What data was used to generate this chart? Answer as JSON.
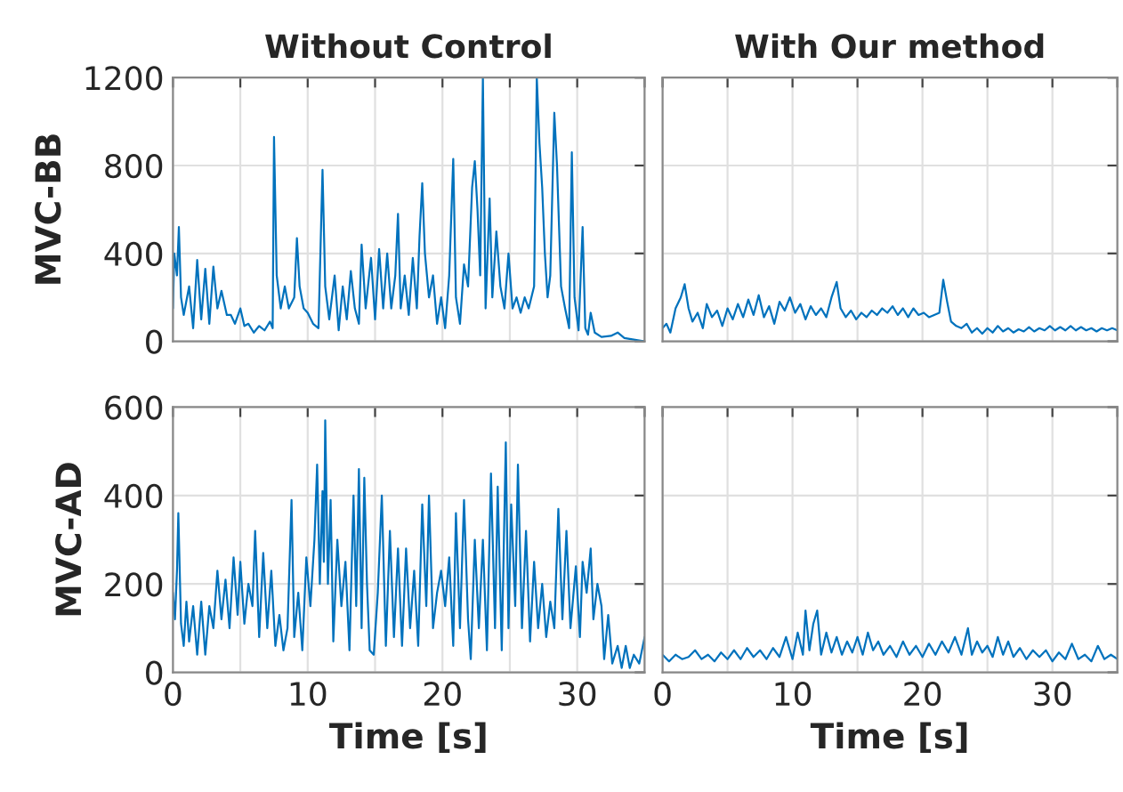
{
  "chart_data": [
    {
      "type": "line",
      "title": "Without Control",
      "ylabel": "MVC-BB",
      "tick_labels": "y",
      "grid": true,
      "xlim": [
        0,
        35
      ],
      "xticks": [
        0,
        {
          "value": 5,
          "label": null
        },
        {
          "value": 10,
          "label": null
        },
        {
          "value": 15,
          "label": null
        },
        {
          "value": 20,
          "label": null
        },
        {
          "value": 25,
          "label": null
        },
        {
          "value": 30,
          "label": null
        },
        {
          "value": 35,
          "label": null
        }
      ],
      "ylim": [
        0,
        1200
      ],
      "yticks": [
        0,
        400,
        800,
        1200
      ],
      "x": [
        0,
        0.1,
        0.3,
        0.44,
        0.6,
        0.8,
        1.2,
        1.5,
        1.8,
        2.1,
        2.4,
        2.7,
        3.0,
        3.3,
        3.6,
        4.0,
        4.3,
        4.6,
        5.0,
        5.3,
        5.6,
        6.0,
        6.4,
        6.8,
        7.2,
        7.4,
        7.5,
        7.7,
        8.0,
        8.3,
        8.6,
        9.0,
        9.2,
        9.4,
        9.7,
        10.0,
        10.4,
        10.8,
        11.1,
        11.3,
        11.6,
        12.0,
        12.3,
        12.6,
        12.9,
        13.2,
        13.5,
        13.8,
        14.0,
        14.3,
        14.7,
        15.0,
        15.3,
        15.6,
        15.9,
        16.2,
        16.5,
        16.7,
        16.9,
        17.2,
        17.5,
        17.8,
        18.1,
        18.3,
        18.5,
        18.7,
        19.0,
        19.3,
        19.6,
        19.9,
        20.2,
        20.5,
        20.8,
        21.0,
        21.3,
        21.6,
        21.9,
        22.2,
        22.4,
        22.6,
        22.8,
        23.0,
        23.2,
        23.5,
        23.7,
        24.0,
        24.3,
        24.6,
        24.9,
        25.2,
        25.5,
        25.8,
        26.1,
        26.4,
        26.8,
        27.0,
        27.2,
        27.4,
        27.6,
        27.8,
        28.0,
        28.3,
        28.5,
        28.8,
        29.1,
        29.4,
        29.6,
        29.8,
        30.1,
        30.4,
        30.6,
        30.8,
        31.0,
        31.3,
        31.8,
        32.5,
        33.0,
        33.5,
        34.0,
        34.5,
        35.0
      ],
      "series": [
        {
          "color": "#0072bd",
          "values": [
            150,
            400,
            300,
            520,
            200,
            120,
            250,
            60,
            370,
            100,
            330,
            80,
            340,
            150,
            230,
            120,
            120,
            80,
            150,
            70,
            80,
            40,
            70,
            50,
            90,
            60,
            930,
            300,
            150,
            250,
            150,
            200,
            470,
            250,
            150,
            130,
            80,
            60,
            780,
            250,
            100,
            300,
            50,
            250,
            100,
            320,
            150,
            80,
            440,
            150,
            380,
            100,
            420,
            150,
            400,
            150,
            300,
            580,
            150,
            300,
            120,
            380,
            150,
            480,
            720,
            400,
            200,
            300,
            80,
            200,
            60,
            300,
            830,
            200,
            80,
            350,
            250,
            700,
            820,
            600,
            300,
            1200,
            150,
            650,
            200,
            500,
            250,
            150,
            400,
            150,
            200,
            130,
            200,
            150,
            250,
            1200,
            900,
            700,
            400,
            200,
            300,
            1040,
            800,
            250,
            150,
            60,
            860,
            200,
            50,
            520,
            60,
            30,
            130,
            40,
            20,
            25,
            40,
            15,
            10,
            5,
            0
          ]
        }
      ]
    },
    {
      "type": "line",
      "title": "With Our method",
      "tick_labels": false,
      "grid": true,
      "xlim": [
        0,
        35
      ],
      "xticks": [
        0,
        {
          "value": 5,
          "label": null
        },
        {
          "value": 10,
          "label": null
        },
        {
          "value": 15,
          "label": null
        },
        {
          "value": 20,
          "label": null
        },
        {
          "value": 25,
          "label": null
        },
        {
          "value": 30,
          "label": null
        },
        {
          "value": 35,
          "label": null
        }
      ],
      "ylim": [
        0,
        1200
      ],
      "yticks": [
        0,
        400,
        800,
        1200
      ],
      "x": [
        0,
        0.3,
        0.6,
        1.0,
        1.4,
        1.7,
        2.0,
        2.3,
        2.7,
        3.1,
        3.4,
        3.8,
        4.2,
        4.6,
        5.0,
        5.4,
        5.8,
        6.2,
        6.6,
        7.0,
        7.4,
        7.8,
        8.2,
        8.6,
        9.0,
        9.4,
        9.8,
        10.2,
        10.6,
        11.0,
        11.4,
        11.8,
        12.2,
        12.6,
        13.0,
        13.4,
        13.7,
        14.1,
        14.5,
        14.9,
        15.3,
        15.7,
        16.1,
        16.5,
        16.9,
        17.3,
        17.7,
        18.1,
        18.5,
        18.9,
        19.3,
        19.7,
        20.1,
        20.5,
        20.9,
        21.3,
        21.6,
        21.9,
        22.2,
        22.6,
        23.0,
        23.4,
        23.8,
        24.2,
        24.6,
        25.0,
        25.4,
        25.8,
        26.2,
        26.6,
        27.0,
        27.4,
        27.8,
        28.2,
        28.6,
        29.0,
        29.4,
        29.8,
        30.2,
        30.6,
        31.0,
        31.4,
        31.8,
        32.2,
        32.6,
        33.0,
        33.4,
        33.8,
        34.2,
        34.6,
        35.0
      ],
      "series": [
        {
          "color": "#0072bd",
          "values": [
            60,
            80,
            40,
            150,
            200,
            260,
            150,
            90,
            130,
            60,
            170,
            110,
            140,
            70,
            150,
            100,
            170,
            110,
            190,
            120,
            210,
            110,
            160,
            80,
            180,
            140,
            200,
            130,
            170,
            100,
            160,
            120,
            150,
            110,
            200,
            270,
            150,
            110,
            140,
            100,
            130,
            110,
            140,
            120,
            150,
            130,
            160,
            120,
            150,
            110,
            150,
            120,
            130,
            110,
            120,
            130,
            280,
            180,
            90,
            70,
            60,
            80,
            40,
            60,
            35,
            60,
            40,
            70,
            45,
            60,
            40,
            55,
            45,
            65,
            45,
            60,
            50,
            70,
            50,
            65,
            50,
            70,
            50,
            65,
            50,
            60,
            45,
            60,
            50,
            60,
            50
          ]
        }
      ]
    },
    {
      "type": "line",
      "ylabel": "MVC-AD",
      "xlabel": "Time [s]",
      "grid": true,
      "xlim": [
        0,
        35
      ],
      "xticks": [
        0,
        {
          "value": 5,
          "label": null
        },
        10,
        {
          "value": 15,
          "label": null
        },
        20,
        {
          "value": 25,
          "label": null
        },
        30,
        {
          "value": 35,
          "label": null
        }
      ],
      "ylim": [
        0,
        600
      ],
      "yticks": [
        0,
        200,
        400,
        600
      ],
      "x": [
        0,
        0.15,
        0.3,
        0.4,
        0.6,
        0.8,
        1.0,
        1.2,
        1.5,
        1.8,
        2.1,
        2.4,
        2.7,
        3.0,
        3.3,
        3.6,
        3.9,
        4.2,
        4.5,
        4.8,
        5.0,
        5.3,
        5.6,
        5.9,
        6.1,
        6.4,
        6.7,
        7.0,
        7.3,
        7.6,
        7.9,
        8.2,
        8.5,
        8.8,
        9.0,
        9.3,
        9.6,
        9.9,
        10.2,
        10.5,
        10.7,
        10.9,
        11.1,
        11.2,
        11.3,
        11.5,
        11.7,
        11.9,
        12.2,
        12.5,
        12.8,
        13.1,
        13.4,
        13.6,
        13.8,
        14.0,
        14.2,
        14.4,
        14.6,
        14.9,
        15.2,
        15.5,
        15.8,
        16.1,
        16.4,
        16.7,
        17.0,
        17.3,
        17.6,
        17.9,
        18.2,
        18.5,
        18.8,
        19.0,
        19.3,
        19.6,
        19.9,
        20.2,
        20.5,
        20.8,
        21.0,
        21.3,
        21.6,
        21.9,
        22.1,
        22.4,
        22.7,
        23.0,
        23.3,
        23.6,
        23.9,
        24.1,
        24.4,
        24.7,
        24.9,
        25.1,
        25.4,
        25.6,
        25.9,
        26.2,
        26.5,
        26.8,
        27.1,
        27.4,
        27.7,
        28.0,
        28.3,
        28.6,
        28.9,
        29.2,
        29.5,
        29.9,
        30.2,
        30.4,
        30.7,
        31.0,
        31.2,
        31.5,
        31.8,
        32.0,
        32.3,
        32.6,
        33.0,
        33.3,
        33.6,
        33.9,
        34.2,
        34.6,
        35.0
      ],
      "series": [
        {
          "color": "#0072bd",
          "values": [
            180,
            120,
            230,
            360,
            110,
            60,
            160,
            70,
            150,
            40,
            160,
            40,
            150,
            100,
            230,
            120,
            210,
            100,
            260,
            130,
            250,
            110,
            200,
            150,
            320,
            80,
            270,
            100,
            230,
            60,
            130,
            50,
            100,
            390,
            80,
            180,
            50,
            260,
            150,
            300,
            470,
            200,
            410,
            250,
            570,
            200,
            390,
            70,
            300,
            150,
            250,
            50,
            400,
            150,
            460,
            100,
            440,
            200,
            50,
            40,
            180,
            400,
            60,
            320,
            80,
            280,
            60,
            280,
            100,
            230,
            60,
            380,
            150,
            400,
            100,
            180,
            230,
            150,
            260,
            60,
            360,
            100,
            390,
            120,
            30,
            300,
            100,
            300,
            50,
            450,
            100,
            420,
            50,
            520,
            100,
            380,
            150,
            470,
            100,
            320,
            70,
            250,
            100,
            200,
            80,
            160,
            100,
            370,
            120,
            320,
            100,
            240,
            80,
            250,
            180,
            280,
            120,
            200,
            150,
            30,
            130,
            20,
            60,
            10,
            60,
            10,
            40,
            20,
            80
          ]
        }
      ]
    },
    {
      "type": "line",
      "xlabel": "Time [s]",
      "tick_labels": "x",
      "grid": true,
      "xlim": [
        0,
        35
      ],
      "xticks": [
        0,
        {
          "value": 5,
          "label": null
        },
        10,
        {
          "value": 15,
          "label": null
        },
        20,
        {
          "value": 25,
          "label": null
        },
        30,
        {
          "value": 35,
          "label": null
        }
      ],
      "ylim": [
        0,
        600
      ],
      "yticks": [
        0,
        200,
        400,
        600
      ],
      "x": [
        0,
        0.5,
        1.0,
        1.5,
        2.0,
        2.5,
        3.0,
        3.5,
        4.0,
        4.5,
        5.0,
        5.5,
        6.0,
        6.5,
        7.0,
        7.5,
        8.0,
        8.5,
        9.0,
        9.5,
        10.0,
        10.4,
        10.8,
        11.0,
        11.3,
        11.6,
        11.9,
        12.2,
        12.6,
        13.0,
        13.4,
        13.8,
        14.2,
        14.6,
        15.0,
        15.4,
        15.8,
        16.2,
        16.6,
        17.0,
        17.5,
        18.0,
        18.5,
        19.0,
        19.5,
        20.0,
        20.5,
        21.0,
        21.5,
        22.0,
        22.5,
        23.0,
        23.5,
        23.8,
        24.2,
        24.6,
        25.0,
        25.4,
        25.8,
        26.2,
        26.6,
        27.0,
        27.5,
        28.0,
        28.5,
        29.0,
        29.5,
        30.0,
        30.5,
        31.0,
        31.5,
        32.0,
        32.5,
        33.0,
        33.5,
        34.0,
        34.5,
        35.0
      ],
      "series": [
        {
          "color": "#0072bd",
          "values": [
            40,
            25,
            40,
            30,
            35,
            50,
            30,
            40,
            25,
            45,
            30,
            50,
            30,
            55,
            35,
            50,
            30,
            55,
            35,
            80,
            30,
            90,
            40,
            140,
            50,
            110,
            140,
            40,
            90,
            45,
            80,
            40,
            70,
            45,
            80,
            40,
            90,
            50,
            70,
            40,
            60,
            35,
            70,
            40,
            60,
            35,
            65,
            40,
            70,
            45,
            80,
            40,
            100,
            40,
            70,
            45,
            60,
            35,
            80,
            40,
            70,
            35,
            55,
            30,
            50,
            35,
            50,
            25,
            45,
            30,
            65,
            30,
            40,
            25,
            60,
            30,
            40,
            30
          ]
        }
      ]
    }
  ]
}
